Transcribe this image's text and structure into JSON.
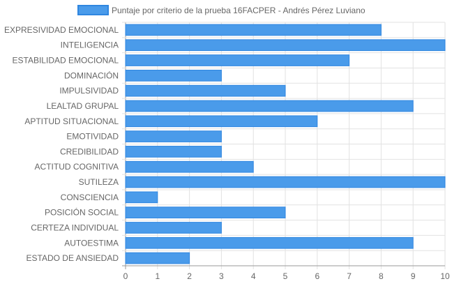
{
  "chart_data": {
    "type": "bar",
    "orientation": "horizontal",
    "categories": [
      "EXPRESIVIDAD EMOCIONAL",
      "INTELIGENCIA",
      "ESTABILIDAD EMOCIONAL",
      "DOMINACIÓN",
      "IMPULSIVIDAD",
      "LEALTAD GRUPAL",
      "APTITUD SITUACIONAL",
      "EMOTIVIDAD",
      "CREDIBILIDAD",
      "ACTITUD COGNITIVA",
      "SUTILEZA",
      "CONSCIENCIA",
      "POSICIÓN SOCIAL",
      "CERTEZA INDIVIDUAL",
      "AUTOESTIMA",
      "ESTADO DE ANSIEDAD"
    ],
    "series": [
      {
        "name": "Puntaje por criterio de la prueba 16FACPER - Andrés Pérez Luviano",
        "values": [
          8,
          10,
          7,
          3,
          5,
          9,
          6,
          3,
          3,
          4,
          10,
          1,
          5,
          3,
          9,
          2
        ]
      }
    ],
    "xlim": [
      0,
      10
    ],
    "xticks": [
      "0",
      "1",
      "2",
      "3",
      "4",
      "5",
      "6",
      "7",
      "8",
      "9",
      "10"
    ],
    "grid": true,
    "legend_position": "top",
    "colors": {
      "bar_fill": "#4a9bea",
      "bar_stroke": "#2f86e0",
      "grid": "#e2e2e2",
      "axis": "#999999",
      "text": "#666666"
    }
  }
}
